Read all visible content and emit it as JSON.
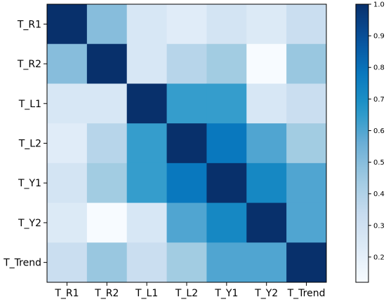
{
  "chart_data": {
    "type": "heatmap",
    "title": "",
    "xlabel": "",
    "ylabel": "",
    "rows": [
      "T_R1",
      "T_R2",
      "T_L1",
      "T_L2",
      "T_Y1",
      "T_Y2",
      "T_Trend"
    ],
    "columns": [
      "T_R1",
      "T_R2",
      "T_L1",
      "T_L2",
      "T_Y1",
      "T_Y2",
      "T_Trend"
    ],
    "values": [
      [
        1.0,
        0.5,
        0.26,
        0.22,
        0.28,
        0.24,
        0.32
      ],
      [
        0.5,
        1.0,
        0.26,
        0.38,
        0.44,
        0.12,
        0.46
      ],
      [
        0.26,
        0.26,
        1.0,
        0.64,
        0.64,
        0.26,
        0.32
      ],
      [
        0.22,
        0.38,
        0.64,
        1.0,
        0.78,
        0.6,
        0.44
      ],
      [
        0.28,
        0.44,
        0.64,
        0.78,
        1.0,
        0.72,
        0.6
      ],
      [
        0.24,
        0.12,
        0.26,
        0.6,
        0.72,
        1.0,
        0.6
      ],
      [
        0.32,
        0.46,
        0.32,
        0.44,
        0.6,
        0.6,
        1.0
      ]
    ],
    "colormap": "Blues",
    "colorbar": {
      "range": [
        0.12,
        1.0
      ],
      "ticks": [
        0.2,
        0.3,
        0.4,
        0.5,
        0.6,
        0.7,
        0.8,
        0.9,
        1.0
      ],
      "tick_labels": [
        "0.2",
        "0.3",
        "0.4",
        "0.5",
        "0.6",
        "0.7",
        "0.8",
        "0.9",
        "1.0"
      ],
      "position": "right"
    },
    "grid": false
  }
}
